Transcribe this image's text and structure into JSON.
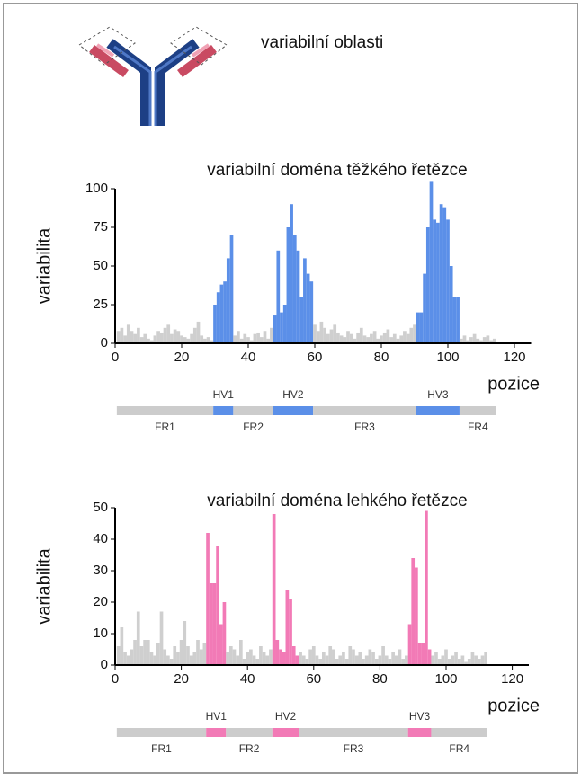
{
  "header": {
    "label": "variabilní oblasti"
  },
  "chart_data": [
    {
      "type": "bar",
      "title": "variabilní doména těžkého řetězce",
      "xlabel": "pozice",
      "ylabel": "variabilita",
      "color": "#cfcfcf",
      "highlight_color": "#5b8fe8",
      "region_color": "#cccccc",
      "xlim": [
        0,
        125
      ],
      "ylim": [
        0,
        100
      ],
      "xticks": [
        0,
        20,
        40,
        60,
        80,
        100,
        120
      ],
      "yticks": [
        0,
        25,
        50,
        75,
        100
      ],
      "x": [
        1,
        2,
        3,
        4,
        5,
        6,
        7,
        8,
        9,
        10,
        11,
        12,
        13,
        14,
        15,
        16,
        17,
        18,
        19,
        20,
        21,
        22,
        23,
        24,
        25,
        26,
        27,
        28,
        29,
        30,
        31,
        32,
        33,
        34,
        35,
        36,
        37,
        38,
        39,
        40,
        41,
        42,
        43,
        44,
        45,
        46,
        47,
        48,
        49,
        50,
        51,
        52,
        53,
        54,
        55,
        56,
        57,
        58,
        59,
        60,
        61,
        62,
        63,
        64,
        65,
        66,
        67,
        68,
        69,
        70,
        71,
        72,
        73,
        74,
        75,
        76,
        77,
        78,
        79,
        80,
        81,
        82,
        83,
        84,
        85,
        86,
        87,
        88,
        89,
        90,
        91,
        92,
        93,
        94,
        95,
        96,
        97,
        98,
        99,
        100,
        101,
        102,
        103,
        104,
        105,
        106,
        107,
        108,
        109,
        110,
        111,
        112,
        113,
        114
      ],
      "values": [
        8,
        10,
        5,
        12,
        8,
        6,
        10,
        4,
        6,
        3,
        2,
        5,
        8,
        7,
        10,
        12,
        6,
        9,
        8,
        5,
        4,
        3,
        6,
        10,
        14,
        5,
        3,
        4,
        2,
        25,
        33,
        38,
        40,
        55,
        70,
        5,
        8,
        3,
        6,
        4,
        2,
        6,
        7,
        4,
        8,
        3,
        10,
        18,
        60,
        20,
        25,
        75,
        90,
        70,
        60,
        30,
        55,
        45,
        40,
        12,
        8,
        14,
        10,
        6,
        9,
        12,
        7,
        5,
        4,
        8,
        6,
        3,
        7,
        10,
        5,
        4,
        6,
        8,
        3,
        5,
        7,
        9,
        4,
        6,
        3,
        5,
        8,
        6,
        10,
        12,
        20,
        20,
        45,
        75,
        105,
        80,
        78,
        90,
        88,
        80,
        50,
        30,
        30,
        3,
        5,
        2,
        4,
        6,
        3,
        2,
        4,
        5,
        2,
        3
      ],
      "regions": [
        {
          "label": "FR1",
          "start": 1,
          "end": 29
        },
        {
          "label": "HV1",
          "start": 30,
          "end": 35,
          "highlight": true
        },
        {
          "label": "FR2",
          "start": 36,
          "end": 47
        },
        {
          "label": "HV2",
          "start": 48,
          "end": 59,
          "highlight": true
        },
        {
          "label": "FR3",
          "start": 60,
          "end": 90
        },
        {
          "label": "HV3",
          "start": 91,
          "end": 103,
          "highlight": true
        },
        {
          "label": "FR4",
          "start": 104,
          "end": 114
        }
      ]
    },
    {
      "type": "bar",
      "title": "variabilní doména lehkého řetězce",
      "xlabel": "pozice",
      "ylabel": "variabilita",
      "color": "#cfcfcf",
      "highlight_color": "#f27ab6",
      "region_color": "#cccccc",
      "xlim": [
        0,
        125
      ],
      "ylim": [
        0,
        50
      ],
      "xticks": [
        0,
        20,
        40,
        60,
        80,
        100,
        120
      ],
      "yticks": [
        0,
        10,
        20,
        30,
        40,
        50
      ],
      "x": [
        1,
        2,
        3,
        4,
        5,
        6,
        7,
        8,
        9,
        10,
        11,
        12,
        13,
        14,
        15,
        16,
        17,
        18,
        19,
        20,
        21,
        22,
        23,
        24,
        25,
        26,
        27,
        28,
        29,
        30,
        31,
        32,
        33,
        34,
        35,
        36,
        37,
        38,
        39,
        40,
        41,
        42,
        43,
        44,
        45,
        46,
        47,
        48,
        49,
        50,
        51,
        52,
        53,
        54,
        55,
        56,
        57,
        58,
        59,
        60,
        61,
        62,
        63,
        64,
        65,
        66,
        67,
        68,
        69,
        70,
        71,
        72,
        73,
        74,
        75,
        76,
        77,
        78,
        79,
        80,
        81,
        82,
        83,
        84,
        85,
        86,
        87,
        88,
        89,
        90,
        91,
        92,
        93,
        94,
        95,
        96,
        97,
        98,
        99,
        100,
        101,
        102,
        103,
        104,
        105,
        106,
        107,
        108,
        109,
        110,
        111,
        112
      ],
      "values": [
        6,
        12,
        4,
        3,
        5,
        8,
        17,
        6,
        8,
        8,
        4,
        3,
        7,
        17,
        5,
        3,
        2,
        6,
        4,
        8,
        14,
        6,
        3,
        4,
        8,
        5,
        7,
        42,
        26,
        26,
        38,
        13,
        20,
        4,
        6,
        5,
        3,
        8,
        2,
        4,
        5,
        3,
        2,
        6,
        4,
        3,
        5,
        48,
        8,
        5,
        4,
        24,
        21,
        6,
        3,
        4,
        3,
        2,
        5,
        6,
        3,
        2,
        4,
        3,
        6,
        5,
        2,
        3,
        4,
        2,
        6,
        5,
        3,
        4,
        2,
        3,
        5,
        4,
        2,
        3,
        6,
        3,
        2,
        4,
        3,
        5,
        2,
        3,
        13,
        34,
        31,
        7,
        7,
        49,
        5,
        3,
        4,
        2,
        3,
        5,
        2,
        3,
        4,
        2,
        3,
        1,
        2,
        4,
        3,
        2,
        3,
        4
      ],
      "regions": [
        {
          "label": "FR1",
          "start": 1,
          "end": 27
        },
        {
          "label": "HV1",
          "start": 28,
          "end": 33,
          "highlight": true
        },
        {
          "label": "FR2",
          "start": 34,
          "end": 47
        },
        {
          "label": "HV2",
          "start": 48,
          "end": 55,
          "highlight": true
        },
        {
          "label": "FR3",
          "start": 56,
          "end": 88
        },
        {
          "label": "HV3",
          "start": 89,
          "end": 95,
          "highlight": true
        },
        {
          "label": "FR4",
          "start": 96,
          "end": 112
        }
      ]
    }
  ]
}
